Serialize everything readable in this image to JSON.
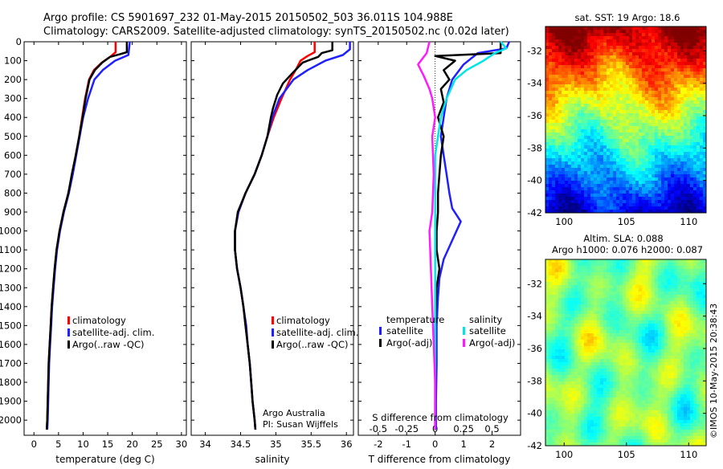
{
  "header": {
    "line1": "Argo profile: CS 5901697_232 01-May-2015 20150502_503 36.011S 104.988E",
    "line2": "Climatology: CARS2009. Satellite-adjusted climatology: synTS_20150502.nc (0.02d later)"
  },
  "colors": {
    "climatology": "#ff0000",
    "satellite": "#1f1fff",
    "argo": "#000000",
    "sat_salinity": "#00e6e6",
    "argo_salinity": "#ff1aff"
  },
  "chart_data": [
    {
      "type": "line",
      "id": "temperature",
      "xlabel": "temperature (deg C)",
      "xlim": [
        -2,
        31
      ],
      "xticks": [
        0,
        5,
        10,
        15,
        20,
        25,
        30
      ],
      "ylim": [
        2080,
        0
      ],
      "yticks": [
        0,
        100,
        200,
        300,
        400,
        500,
        600,
        700,
        800,
        900,
        1000,
        1100,
        1200,
        1300,
        1400,
        1500,
        1600,
        1700,
        1800,
        1900,
        2000
      ],
      "legend": [
        "climatology",
        "satellite-adj. clim.",
        "Argo(..raw -QC)"
      ],
      "series": [
        {
          "name": "climatology",
          "color": "#ff0000",
          "points": [
            [
              16.6,
              0
            ],
            [
              16.6,
              55
            ],
            [
              15.5,
              80
            ],
            [
              13.8,
              110
            ],
            [
              12.2,
              150
            ],
            [
              11.2,
              200
            ],
            [
              10.4,
              300
            ],
            [
              9.8,
              400
            ],
            [
              9.2,
              500
            ],
            [
              8.5,
              600
            ],
            [
              7.8,
              700
            ],
            [
              7.0,
              800
            ],
            [
              6.0,
              900
            ],
            [
              5.2,
              1000
            ],
            [
              4.6,
              1100
            ],
            [
              4.2,
              1200
            ],
            [
              3.9,
              1300
            ],
            [
              3.6,
              1400
            ],
            [
              3.4,
              1500
            ],
            [
              3.2,
              1600
            ],
            [
              3.0,
              1700
            ],
            [
              2.9,
              1800
            ],
            [
              2.8,
              1900
            ],
            [
              2.7,
              2000
            ],
            [
              2.6,
              2050
            ]
          ]
        },
        {
          "name": "satellite-adj. clim.",
          "color": "#1f1fff",
          "points": [
            [
              19.5,
              0
            ],
            [
              19.2,
              70
            ],
            [
              16.5,
              100
            ],
            [
              14.0,
              150
            ],
            [
              12.3,
              200
            ],
            [
              11.0,
              300
            ],
            [
              10.0,
              400
            ],
            [
              9.3,
              500
            ],
            [
              8.6,
              600
            ],
            [
              7.9,
              700
            ],
            [
              7.1,
              800
            ],
            [
              6.1,
              900
            ],
            [
              5.3,
              1000
            ],
            [
              4.7,
              1100
            ],
            [
              4.3,
              1200
            ],
            [
              4.0,
              1300
            ],
            [
              3.7,
              1400
            ],
            [
              3.5,
              1500
            ],
            [
              3.3,
              1600
            ],
            [
              3.1,
              1700
            ],
            [
              3.0,
              1800
            ],
            [
              2.9,
              1900
            ],
            [
              2.8,
              2000
            ],
            [
              2.7,
              2050
            ]
          ]
        },
        {
          "name": "Argo(..raw -QC)",
          "color": "#000000",
          "points": [
            [
              18.9,
              0
            ],
            [
              18.9,
              55
            ],
            [
              17.6,
              65
            ],
            [
              15.5,
              80
            ],
            [
              13.9,
              110
            ],
            [
              12.4,
              150
            ],
            [
              11.3,
              200
            ],
            [
              10.5,
              300
            ],
            [
              9.9,
              400
            ],
            [
              9.2,
              500
            ],
            [
              8.5,
              600
            ],
            [
              7.7,
              700
            ],
            [
              7.0,
              800
            ],
            [
              6.0,
              900
            ],
            [
              5.2,
              1000
            ],
            [
              4.6,
              1100
            ],
            [
              4.2,
              1200
            ],
            [
              3.9,
              1300
            ],
            [
              3.6,
              1400
            ],
            [
              3.4,
              1500
            ],
            [
              3.2,
              1600
            ],
            [
              3.0,
              1700
            ],
            [
              2.9,
              1800
            ],
            [
              2.8,
              1900
            ],
            [
              2.7,
              2000
            ],
            [
              2.6,
              2050
            ]
          ]
        }
      ]
    },
    {
      "type": "line",
      "id": "salinity",
      "xlabel": "salinity",
      "xlim": [
        33.8,
        36.1
      ],
      "xticks": [
        34,
        34.5,
        35,
        35.5,
        36
      ],
      "ylim": [
        2080,
        0
      ],
      "legend": [
        "climatology",
        "satellite-adj. clim.",
        "Argo(..raw -QC)"
      ],
      "annotation": [
        "Argo Australia",
        "PI: Susan Wijffels"
      ],
      "series": [
        {
          "name": "climatology",
          "color": "#ff0000",
          "points": [
            [
              35.55,
              0
            ],
            [
              35.55,
              55
            ],
            [
              35.45,
              75
            ],
            [
              35.35,
              100
            ],
            [
              35.28,
              150
            ],
            [
              35.2,
              200
            ],
            [
              35.08,
              300
            ],
            [
              34.97,
              400
            ],
            [
              34.88,
              500
            ],
            [
              34.8,
              600
            ],
            [
              34.7,
              700
            ],
            [
              34.57,
              800
            ],
            [
              34.47,
              900
            ],
            [
              34.42,
              1000
            ],
            [
              34.42,
              1100
            ],
            [
              34.45,
              1200
            ],
            [
              34.5,
              1300
            ],
            [
              34.54,
              1400
            ],
            [
              34.57,
              1500
            ],
            [
              34.6,
              1600
            ],
            [
              34.63,
              1700
            ],
            [
              34.65,
              1800
            ],
            [
              34.67,
              1900
            ],
            [
              34.7,
              2000
            ],
            [
              34.71,
              2050
            ]
          ]
        },
        {
          "name": "satellite-adj. clim.",
          "color": "#1f1fff",
          "points": [
            [
              36.05,
              0
            ],
            [
              36.05,
              40
            ],
            [
              35.95,
              70
            ],
            [
              35.7,
              100
            ],
            [
              35.45,
              150
            ],
            [
              35.25,
              200
            ],
            [
              35.05,
              300
            ],
            [
              34.95,
              400
            ],
            [
              34.88,
              500
            ],
            [
              34.8,
              600
            ],
            [
              34.7,
              700
            ],
            [
              34.57,
              800
            ],
            [
              34.47,
              900
            ],
            [
              34.42,
              1000
            ],
            [
              34.42,
              1100
            ],
            [
              34.45,
              1200
            ],
            [
              34.5,
              1300
            ],
            [
              34.54,
              1400
            ],
            [
              34.58,
              1500
            ],
            [
              34.6,
              1600
            ],
            [
              34.63,
              1700
            ],
            [
              34.65,
              1800
            ],
            [
              34.67,
              1900
            ],
            [
              34.7,
              2000
            ],
            [
              34.71,
              2050
            ]
          ]
        },
        {
          "name": "Argo(..raw -QC)",
          "color": "#000000",
          "points": [
            [
              35.8,
              0
            ],
            [
              35.8,
              45
            ],
            [
              35.65,
              60
            ],
            [
              35.6,
              80
            ],
            [
              35.38,
              110
            ],
            [
              35.25,
              160
            ],
            [
              35.1,
              220
            ],
            [
              35.02,
              280
            ],
            [
              34.96,
              350
            ],
            [
              34.93,
              400
            ],
            [
              34.88,
              500
            ],
            [
              34.8,
              600
            ],
            [
              34.7,
              700
            ],
            [
              34.57,
              800
            ],
            [
              34.46,
              900
            ],
            [
              34.42,
              1000
            ],
            [
              34.42,
              1100
            ],
            [
              34.45,
              1200
            ],
            [
              34.5,
              1300
            ],
            [
              34.54,
              1400
            ],
            [
              34.57,
              1500
            ],
            [
              34.6,
              1600
            ],
            [
              34.63,
              1700
            ],
            [
              34.65,
              1800
            ],
            [
              34.67,
              1900
            ],
            [
              34.7,
              2000
            ],
            [
              34.71,
              2050
            ]
          ]
        }
      ]
    },
    {
      "type": "line",
      "id": "differences",
      "xlabel": "T difference from climatology",
      "xlabel_top": "S difference from climatology",
      "xlim": [
        -2.7,
        3.0
      ],
      "xticks": [
        -2,
        -1,
        0,
        1,
        2
      ],
      "xticks_s": [
        "-0.5",
        "-0.25",
        "0",
        "0.25",
        "0.5"
      ],
      "ylim": [
        2080,
        0
      ],
      "legend_temperature": {
        "title": "temperature",
        "entries": [
          "satellite",
          "Argo(-adj)"
        ]
      },
      "legend_salinity": {
        "title": "salinity",
        "entries": [
          "satellite",
          "Argo(-adj)"
        ]
      },
      "series": [
        {
          "name": "temperature satellite",
          "color": "#1f1fff",
          "points": [
            [
              2.6,
              0
            ],
            [
              2.5,
              35
            ],
            [
              1.5,
              60
            ],
            [
              1.0,
              120
            ],
            [
              0.6,
              200
            ],
            [
              0.4,
              300
            ],
            [
              0.3,
              400
            ],
            [
              0.2,
              500
            ],
            [
              0.3,
              600
            ],
            [
              0.4,
              700
            ],
            [
              0.5,
              800
            ],
            [
              0.6,
              880
            ],
            [
              0.9,
              950
            ],
            [
              0.6,
              1050
            ],
            [
              0.3,
              1150
            ],
            [
              0.15,
              1250
            ],
            [
              0.1,
              1350
            ],
            [
              0.05,
              1500
            ],
            [
              0.05,
              1700
            ],
            [
              0.03,
              1900
            ],
            [
              0.03,
              2050
            ]
          ]
        },
        {
          "name": "temperature Argo(-adj)",
          "color": "#000000",
          "points": [
            [
              2.3,
              0
            ],
            [
              2.3,
              60
            ],
            [
              0.0,
              75
            ],
            [
              0.7,
              100
            ],
            [
              0.3,
              150
            ],
            [
              0.5,
              200
            ],
            [
              0.2,
              250
            ],
            [
              0.3,
              320
            ],
            [
              0.1,
              400
            ],
            [
              0.3,
              500
            ],
            [
              0.2,
              600
            ],
            [
              0.15,
              700
            ],
            [
              0.1,
              800
            ],
            [
              0.1,
              900
            ],
            [
              0.05,
              1000
            ],
            [
              0.05,
              1100
            ],
            [
              0.15,
              1200
            ],
            [
              0.05,
              1300
            ],
            [
              0.0,
              1500
            ],
            [
              0.0,
              1700
            ],
            [
              0.0,
              1900
            ],
            [
              0.0,
              2050
            ]
          ]
        },
        {
          "name": "salinity satellite",
          "color": "#00e6e6",
          "points": [
            [
              2.3,
              0
            ],
            [
              2.5,
              35
            ],
            [
              2.1,
              60
            ],
            [
              1.7,
              100
            ],
            [
              1.1,
              150
            ],
            [
              0.7,
              200
            ],
            [
              0.4,
              300
            ],
            [
              0.2,
              400
            ],
            [
              0.1,
              500
            ],
            [
              0.0,
              600
            ],
            [
              0.0,
              700
            ],
            [
              0.0,
              800
            ],
            [
              0.0,
              1000
            ],
            [
              0.0,
              1200
            ],
            [
              0.0,
              1500
            ],
            [
              0.0,
              1800
            ],
            [
              0.0,
              2050
            ]
          ]
        },
        {
          "name": "salinity Argo(-adj)",
          "color": "#ff1aff",
          "points": [
            [
              -0.2,
              0
            ],
            [
              -0.3,
              60
            ],
            [
              -0.6,
              120
            ],
            [
              -0.4,
              180
            ],
            [
              -0.2,
              250
            ],
            [
              -0.1,
              300
            ],
            [
              0.0,
              400
            ],
            [
              -0.1,
              500
            ],
            [
              -0.05,
              700
            ],
            [
              -0.1,
              900
            ],
            [
              -0.2,
              1000
            ],
            [
              -0.15,
              1200
            ],
            [
              -0.1,
              1400
            ],
            [
              -0.05,
              1600
            ],
            [
              0.0,
              1800
            ],
            [
              0.0,
              2050
            ]
          ]
        }
      ]
    },
    {
      "type": "heatmap",
      "id": "sst_map",
      "title": "sat. SST: 19 Argo: 18.6",
      "xticks": [
        "100",
        "105",
        "110"
      ],
      "yticks": [
        "-32",
        "-34",
        "-36",
        "-38",
        "-40",
        "-42"
      ]
    },
    {
      "type": "heatmap",
      "id": "sla_map",
      "title_line1": "Altim. SLA: 0.088",
      "title_line2": "Argo h1000: 0.076 h2000: 0.087",
      "xticks": [
        "100",
        "105",
        "110"
      ],
      "yticks": [
        "-32",
        "-34",
        "-36",
        "-38",
        "-40",
        "-42"
      ]
    }
  ],
  "footer": {
    "stamp": "©IMOS 10-May-2015 20:38:43"
  }
}
